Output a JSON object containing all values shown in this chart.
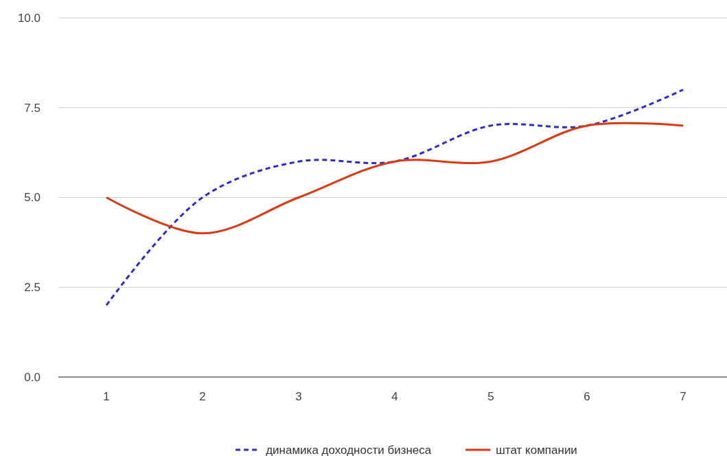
{
  "chart_data": {
    "type": "line",
    "categories": [
      "1",
      "2",
      "3",
      "4",
      "5",
      "6",
      "7"
    ],
    "series": [
      {
        "name": "динамика доходности бизнеса",
        "color": "#2b2bd0",
        "line_style": "dashed",
        "values": [
          2,
          5,
          6,
          6,
          7,
          7,
          8
        ]
      },
      {
        "name": "штат компании",
        "color": "#dc3912",
        "line_style": "solid",
        "values": [
          5,
          4,
          5,
          6,
          6,
          7,
          7
        ]
      }
    ],
    "ylim": [
      0,
      10
    ],
    "yticks": [
      {
        "value": 0,
        "label": "0.0"
      },
      {
        "value": 2.5,
        "label": "2.5"
      },
      {
        "value": 5,
        "label": "5.0"
      },
      {
        "value": 7.5,
        "label": "7.5"
      },
      {
        "value": 10,
        "label": "10.0"
      }
    ],
    "grid": "y",
    "legend": "bottom",
    "marker": "none"
  }
}
